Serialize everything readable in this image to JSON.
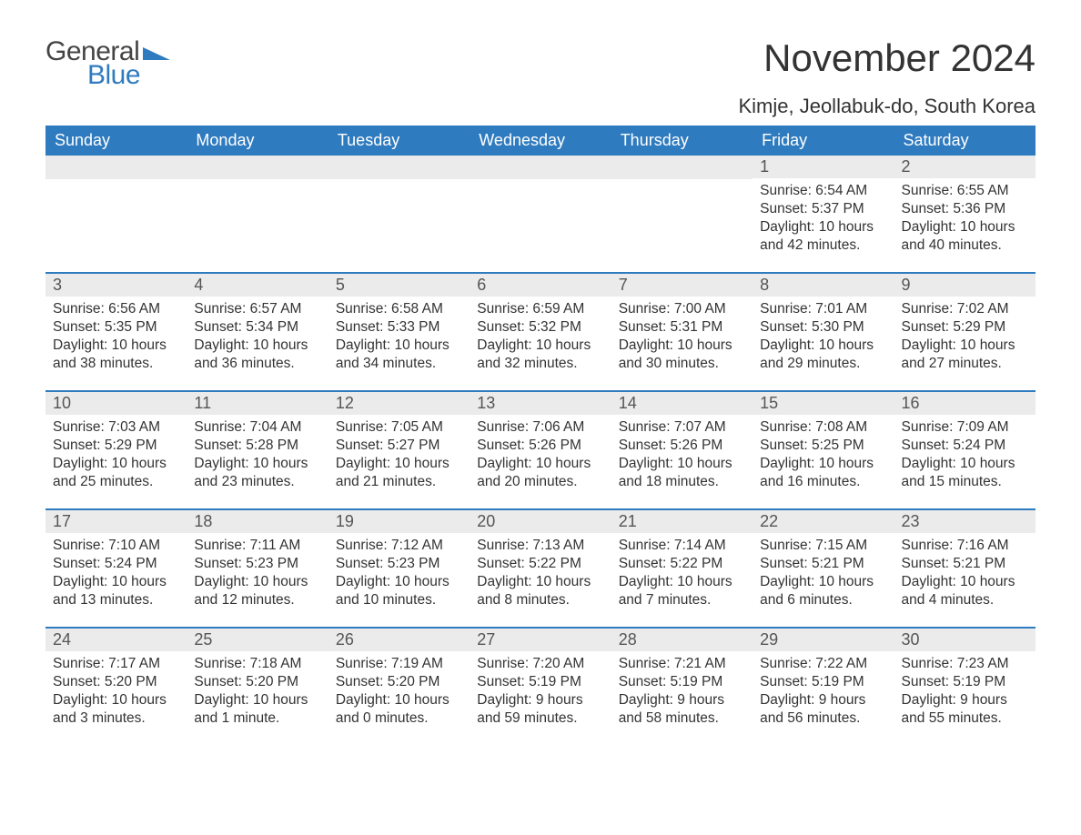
{
  "brand": {
    "word1": "General",
    "word2": "Blue"
  },
  "title": "November 2024",
  "location": "Kimje, Jeollabuk-do, South Korea",
  "colors": {
    "header_bg": "#2f7bbf",
    "header_text": "#ffffff",
    "daynum_bg": "#ebebeb",
    "daynum_text": "#555555",
    "body_text": "#333333",
    "row_border": "#2f7bbf",
    "page_bg": "#ffffff",
    "logo_general": "#444444",
    "logo_blue": "#2f7bbf"
  },
  "weekdays": [
    "Sunday",
    "Monday",
    "Tuesday",
    "Wednesday",
    "Thursday",
    "Friday",
    "Saturday"
  ],
  "weeks": [
    [
      null,
      null,
      null,
      null,
      null,
      {
        "n": "1",
        "sunrise": "6:54 AM",
        "sunset": "5:37 PM",
        "daylight": "10 hours and 42 minutes."
      },
      {
        "n": "2",
        "sunrise": "6:55 AM",
        "sunset": "5:36 PM",
        "daylight": "10 hours and 40 minutes."
      }
    ],
    [
      {
        "n": "3",
        "sunrise": "6:56 AM",
        "sunset": "5:35 PM",
        "daylight": "10 hours and 38 minutes."
      },
      {
        "n": "4",
        "sunrise": "6:57 AM",
        "sunset": "5:34 PM",
        "daylight": "10 hours and 36 minutes."
      },
      {
        "n": "5",
        "sunrise": "6:58 AM",
        "sunset": "5:33 PM",
        "daylight": "10 hours and 34 minutes."
      },
      {
        "n": "6",
        "sunrise": "6:59 AM",
        "sunset": "5:32 PM",
        "daylight": "10 hours and 32 minutes."
      },
      {
        "n": "7",
        "sunrise": "7:00 AM",
        "sunset": "5:31 PM",
        "daylight": "10 hours and 30 minutes."
      },
      {
        "n": "8",
        "sunrise": "7:01 AM",
        "sunset": "5:30 PM",
        "daylight": "10 hours and 29 minutes."
      },
      {
        "n": "9",
        "sunrise": "7:02 AM",
        "sunset": "5:29 PM",
        "daylight": "10 hours and 27 minutes."
      }
    ],
    [
      {
        "n": "10",
        "sunrise": "7:03 AM",
        "sunset": "5:29 PM",
        "daylight": "10 hours and 25 minutes."
      },
      {
        "n": "11",
        "sunrise": "7:04 AM",
        "sunset": "5:28 PM",
        "daylight": "10 hours and 23 minutes."
      },
      {
        "n": "12",
        "sunrise": "7:05 AM",
        "sunset": "5:27 PM",
        "daylight": "10 hours and 21 minutes."
      },
      {
        "n": "13",
        "sunrise": "7:06 AM",
        "sunset": "5:26 PM",
        "daylight": "10 hours and 20 minutes."
      },
      {
        "n": "14",
        "sunrise": "7:07 AM",
        "sunset": "5:26 PM",
        "daylight": "10 hours and 18 minutes."
      },
      {
        "n": "15",
        "sunrise": "7:08 AM",
        "sunset": "5:25 PM",
        "daylight": "10 hours and 16 minutes."
      },
      {
        "n": "16",
        "sunrise": "7:09 AM",
        "sunset": "5:24 PM",
        "daylight": "10 hours and 15 minutes."
      }
    ],
    [
      {
        "n": "17",
        "sunrise": "7:10 AM",
        "sunset": "5:24 PM",
        "daylight": "10 hours and 13 minutes."
      },
      {
        "n": "18",
        "sunrise": "7:11 AM",
        "sunset": "5:23 PM",
        "daylight": "10 hours and 12 minutes."
      },
      {
        "n": "19",
        "sunrise": "7:12 AM",
        "sunset": "5:23 PM",
        "daylight": "10 hours and 10 minutes."
      },
      {
        "n": "20",
        "sunrise": "7:13 AM",
        "sunset": "5:22 PM",
        "daylight": "10 hours and 8 minutes."
      },
      {
        "n": "21",
        "sunrise": "7:14 AM",
        "sunset": "5:22 PM",
        "daylight": "10 hours and 7 minutes."
      },
      {
        "n": "22",
        "sunrise": "7:15 AM",
        "sunset": "5:21 PM",
        "daylight": "10 hours and 6 minutes."
      },
      {
        "n": "23",
        "sunrise": "7:16 AM",
        "sunset": "5:21 PM",
        "daylight": "10 hours and 4 minutes."
      }
    ],
    [
      {
        "n": "24",
        "sunrise": "7:17 AM",
        "sunset": "5:20 PM",
        "daylight": "10 hours and 3 minutes."
      },
      {
        "n": "25",
        "sunrise": "7:18 AM",
        "sunset": "5:20 PM",
        "daylight": "10 hours and 1 minute."
      },
      {
        "n": "26",
        "sunrise": "7:19 AM",
        "sunset": "5:20 PM",
        "daylight": "10 hours and 0 minutes."
      },
      {
        "n": "27",
        "sunrise": "7:20 AM",
        "sunset": "5:19 PM",
        "daylight": "9 hours and 59 minutes."
      },
      {
        "n": "28",
        "sunrise": "7:21 AM",
        "sunset": "5:19 PM",
        "daylight": "9 hours and 58 minutes."
      },
      {
        "n": "29",
        "sunrise": "7:22 AM",
        "sunset": "5:19 PM",
        "daylight": "9 hours and 56 minutes."
      },
      {
        "n": "30",
        "sunrise": "7:23 AM",
        "sunset": "5:19 PM",
        "daylight": "9 hours and 55 minutes."
      }
    ]
  ],
  "labels": {
    "sunrise": "Sunrise: ",
    "sunset": "Sunset: ",
    "daylight": "Daylight: "
  }
}
